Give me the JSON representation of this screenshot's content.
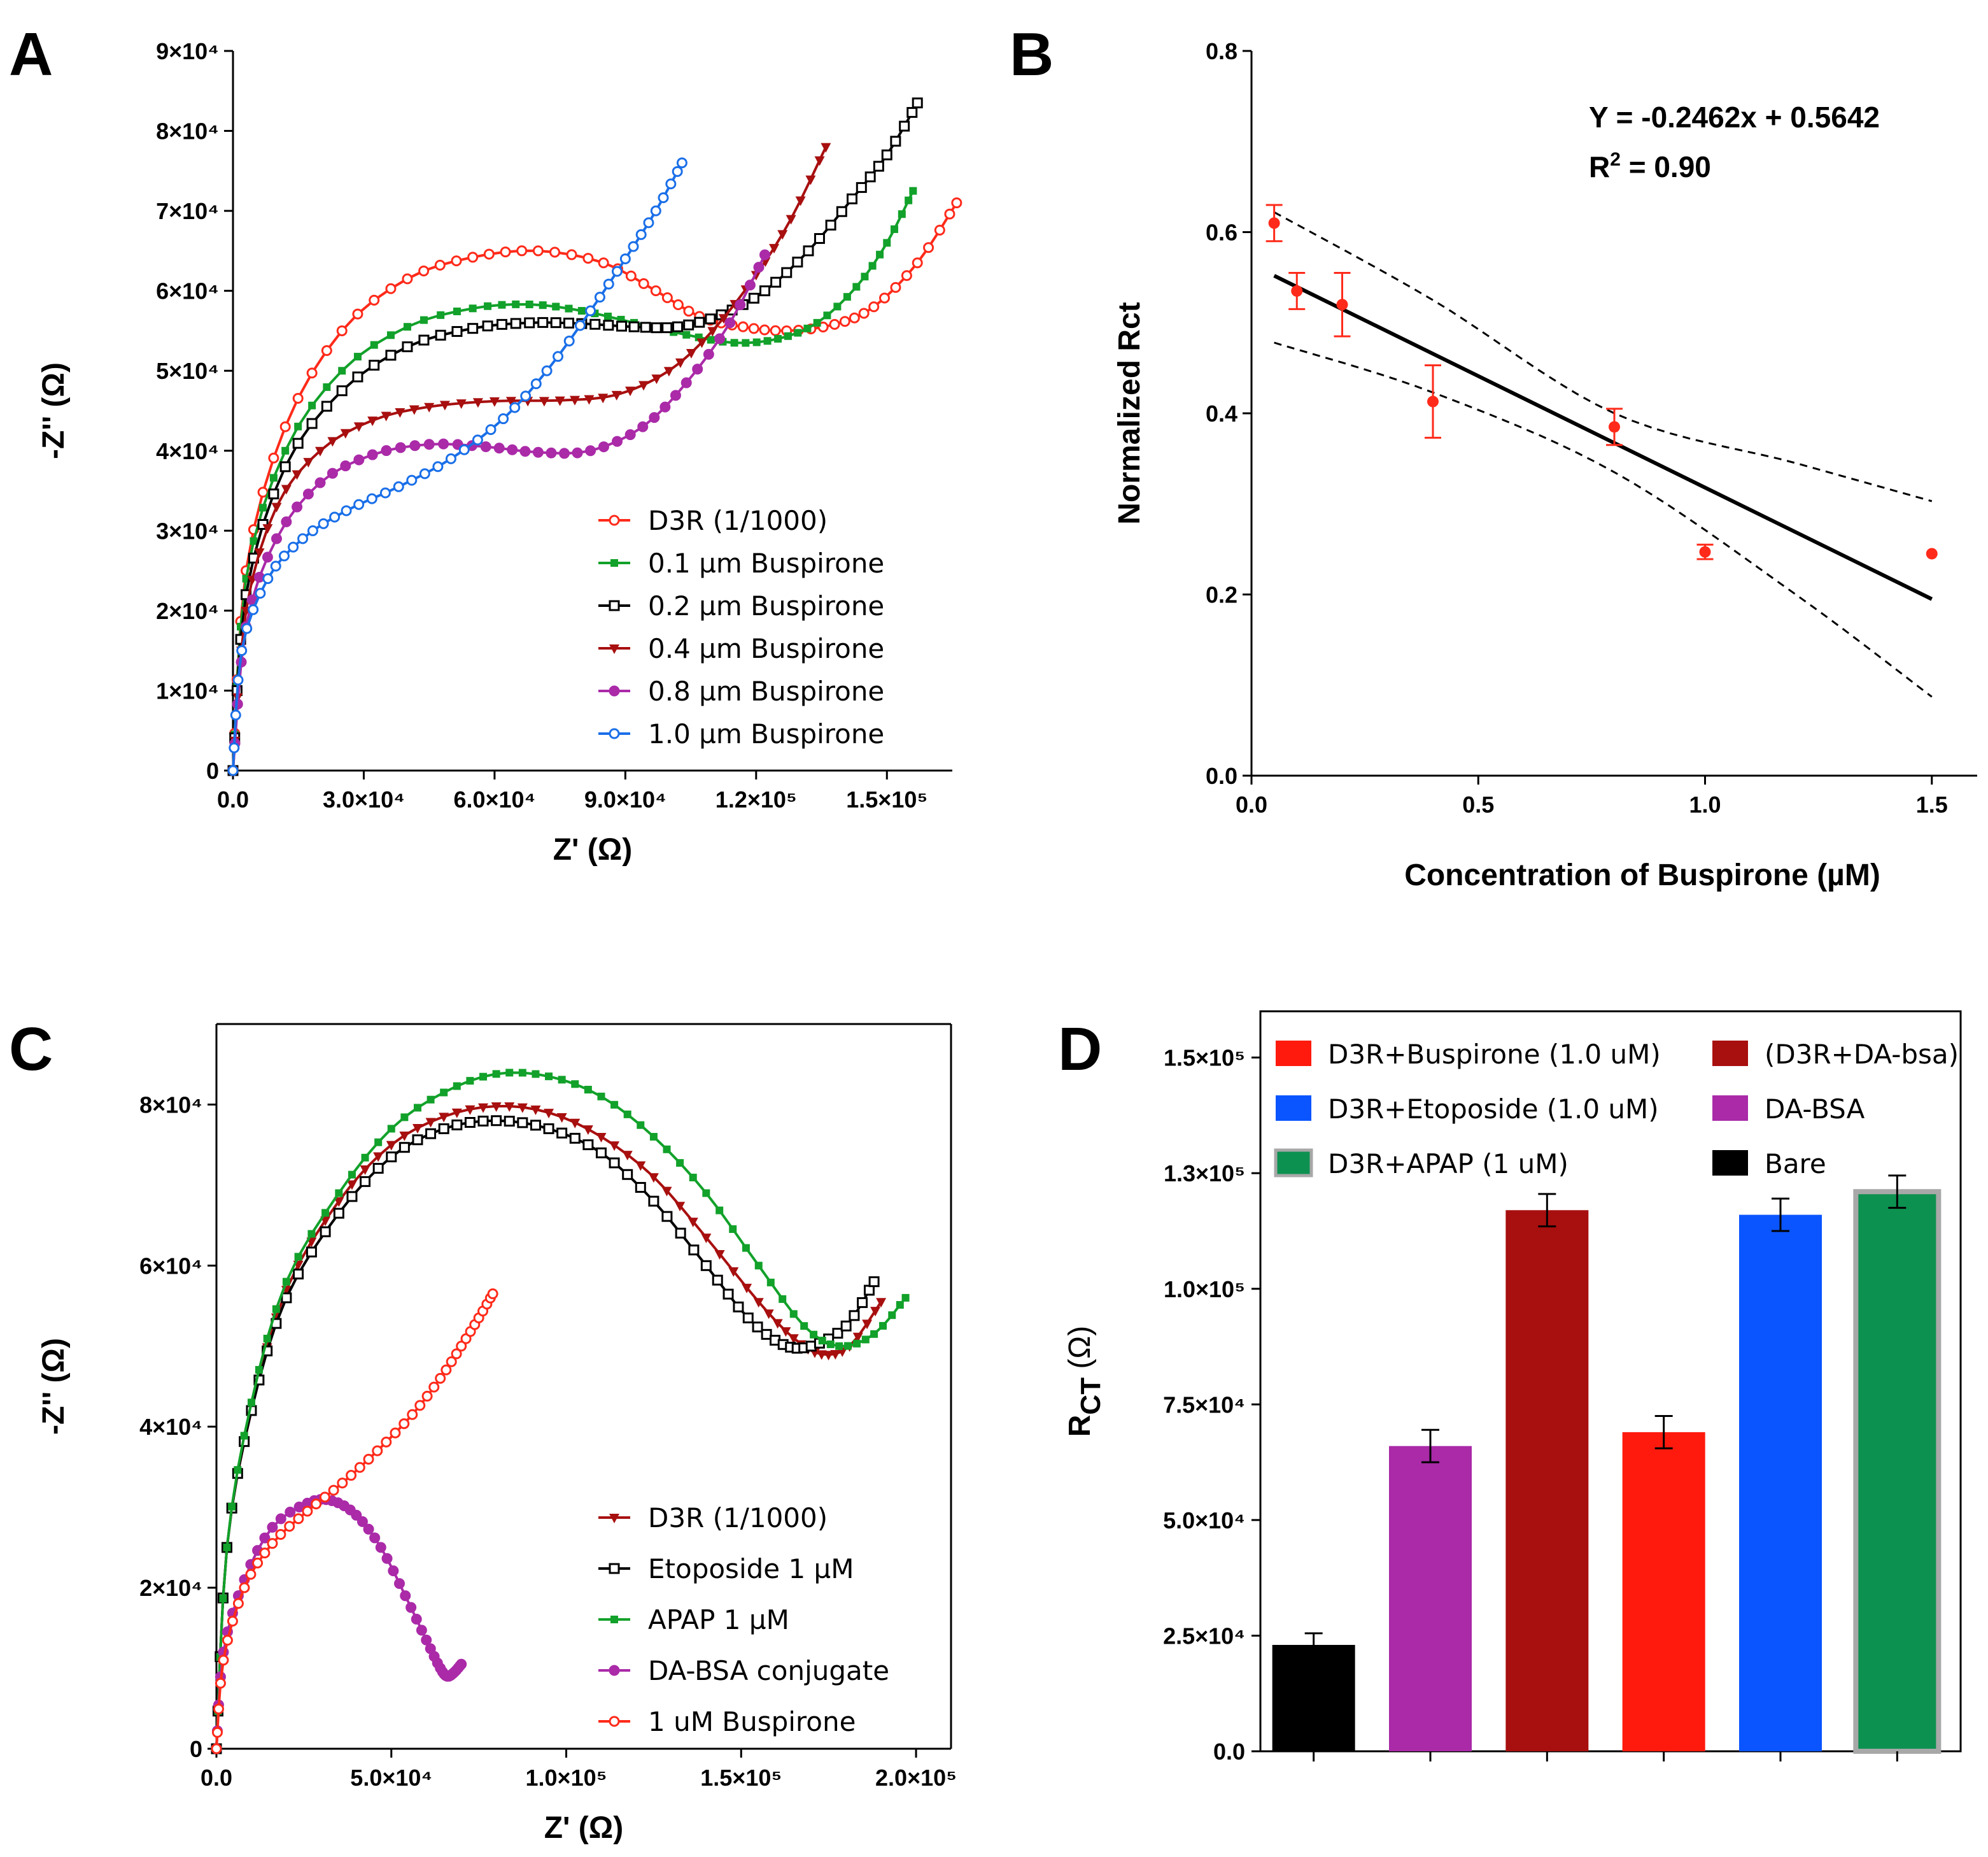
{
  "panels": {
    "A": "A",
    "B": "B",
    "C": "C",
    "D": "D"
  },
  "colors": {
    "red": "#ff2a1a",
    "green": "#12a12a",
    "black": "#000000",
    "darkred": "#a80f0f",
    "purple": "#aa2aa8",
    "blue": "#1a6fe8",
    "bar_red": "#ff1a0d",
    "bar_blue": "#0a55ff",
    "bar_green": "#0d9150",
    "bar_gray": "#a8a8a8"
  },
  "chart_data": [
    {
      "id": "A",
      "type": "line",
      "xlabel": "Z' (Ω)",
      "ylabel": "-Z'' (Ω)",
      "xlim": [
        0,
        165000
      ],
      "ylim": [
        0,
        90000
      ],
      "x_ticks": [
        {
          "value": 0,
          "label": "0.0"
        },
        {
          "value": 30000,
          "label": "3.0×10⁴"
        },
        {
          "value": 60000,
          "label": "6.0×10⁴"
        },
        {
          "value": 90000,
          "label": "9.0×10⁴"
        },
        {
          "value": 120000,
          "label": "1.2×10⁵"
        },
        {
          "value": 150000,
          "label": "1.5×10⁵"
        }
      ],
      "y_ticks": [
        {
          "value": 0,
          "label": "0"
        },
        {
          "value": 10000,
          "label": "1×10⁴"
        },
        {
          "value": 20000,
          "label": "2×10⁴"
        },
        {
          "value": 30000,
          "label": "3×10⁴"
        },
        {
          "value": 40000,
          "label": "4×10⁴"
        },
        {
          "value": 50000,
          "label": "5×10⁴"
        },
        {
          "value": 60000,
          "label": "6×10⁴"
        },
        {
          "value": 70000,
          "label": "7×10⁴"
        },
        {
          "value": 80000,
          "label": "8×10⁴"
        },
        {
          "value": 90000,
          "label": "9×10⁴"
        }
      ],
      "series": [
        {
          "name": "D3R (1/1000)",
          "color": "#ff2a1a",
          "marker": "circle-open",
          "x": [
            0,
            3000,
            12000,
            25000,
            40000,
            55000,
            70000,
            85000,
            97000,
            107000,
            117000,
            127000,
            138000,
            147000,
            157000,
            166000
          ],
          "y": [
            0,
            25000,
            43000,
            55000,
            61500,
            64200,
            65000,
            63500,
            60000,
            56800,
            55500,
            55000,
            55800,
            58000,
            63500,
            71000
          ]
        },
        {
          "name": "0.1 µm Buspirone",
          "color": "#12a12a",
          "marker": "square-filled",
          "x": [
            0,
            3000,
            12000,
            25000,
            40000,
            55000,
            68000,
            80000,
            92000,
            104000,
            115000,
            125000,
            134000,
            143000,
            150000,
            156000
          ],
          "y": [
            0,
            24000,
            40000,
            50000,
            55500,
            57800,
            58300,
            57500,
            56000,
            54500,
            53500,
            54000,
            56000,
            60500,
            66000,
            72500
          ]
        },
        {
          "name": "0.2 µm Buspirone",
          "color": "#000000",
          "marker": "square-open",
          "x": [
            0,
            3000,
            12000,
            25000,
            40000,
            55000,
            68000,
            80000,
            92000,
            102000,
            112000,
            122000,
            132000,
            142000,
            150000,
            157000
          ],
          "y": [
            0,
            22000,
            38000,
            47500,
            53000,
            55300,
            56000,
            55900,
            55500,
            55500,
            57000,
            60000,
            65000,
            71500,
            77000,
            83500
          ]
        },
        {
          "name": "0.4 µm Buspirone",
          "color": "#a80f0f",
          "marker": "triangle-down",
          "x": [
            0,
            3000,
            10000,
            20000,
            32000,
            45000,
            60000,
            75000,
            88000,
            100000,
            110000,
            120000,
            128000,
            136000
          ],
          "y": [
            0,
            20000,
            33000,
            40000,
            43800,
            45500,
            46200,
            46300,
            47000,
            50000,
            55000,
            62000,
            69000,
            78000
          ]
        },
        {
          "name": "0.8 µm Buspirone",
          "color": "#aa2aa8",
          "marker": "circle-filled",
          "x": [
            0,
            3000,
            10000,
            20000,
            32000,
            45000,
            58000,
            70000,
            82000,
            94000,
            104000,
            114000,
            122000
          ],
          "y": [
            0,
            18000,
            29000,
            36000,
            39500,
            40800,
            40500,
            39800,
            40000,
            43000,
            48500,
            56000,
            64500
          ]
        },
        {
          "name": "1.0 µm Buspirone",
          "color": "#1a6fe8",
          "marker": "circle-open",
          "x": [
            0,
            2000,
            8000,
            16000,
            26000,
            38000,
            50000,
            62000,
            72000,
            82000,
            90000,
            97000,
            103000
          ],
          "y": [
            0,
            15000,
            24000,
            29000,
            32500,
            35500,
            39000,
            44000,
            50000,
            57500,
            64000,
            70000,
            76000
          ]
        }
      ]
    },
    {
      "id": "B",
      "type": "scatter",
      "xlabel": "Concentration of Buspirone (µM)",
      "ylabel": "Normalized Rct",
      "xlim": [
        0,
        1.6
      ],
      "ylim": [
        0,
        0.8
      ],
      "x_ticks": [
        {
          "value": 0,
          "label": "0.0"
        },
        {
          "value": 0.5,
          "label": "0.5"
        },
        {
          "value": 1.0,
          "label": "1.0"
        },
        {
          "value": 1.5,
          "label": "1.5"
        }
      ],
      "y_ticks": [
        {
          "value": 0,
          "label": "0.0"
        },
        {
          "value": 0.2,
          "label": "0.2"
        },
        {
          "value": 0.4,
          "label": "0.4"
        },
        {
          "value": 0.6,
          "label": "0.6"
        },
        {
          "value": 0.8,
          "label": "0.8"
        }
      ],
      "points": {
        "x": [
          0.05,
          0.1,
          0.2,
          0.4,
          0.8,
          1.0,
          1.5
        ],
        "y": [
          0.61,
          0.535,
          0.52,
          0.413,
          0.385,
          0.247,
          0.245
        ],
        "err": [
          0.02,
          0.02,
          0.035,
          0.04,
          0.02,
          0.008,
          0.0
        ]
      },
      "fit": {
        "slope": -0.2462,
        "intercept": 0.5642,
        "x_range": [
          0.05,
          1.5
        ]
      },
      "conf_band": {
        "x": [
          0.05,
          0.4,
          0.8,
          1.2,
          1.5
        ],
        "upper": [
          0.622,
          0.525,
          0.4,
          0.345,
          0.303
        ],
        "lower": [
          0.478,
          0.423,
          0.335,
          0.2,
          0.087
        ]
      },
      "equation": "Y = -0.2462x + 0.5642",
      "r2_label": "R",
      "r2_sup": "2",
      "r2_value": " = 0.90"
    },
    {
      "id": "C",
      "type": "line",
      "xlabel": "Z' (Ω)",
      "ylabel": "-Z'' (Ω)",
      "xlim": [
        0,
        210000
      ],
      "ylim": [
        0,
        90000
      ],
      "x_ticks": [
        {
          "value": 0,
          "label": "0.0"
        },
        {
          "value": 50000,
          "label": "5.0×10⁴"
        },
        {
          "value": 100000,
          "label": "1.0×10⁵"
        },
        {
          "value": 150000,
          "label": "1.5×10⁵"
        },
        {
          "value": 200000,
          "label": "2.0×10⁵"
        }
      ],
      "y_ticks": [
        {
          "value": 0,
          "label": "0"
        },
        {
          "value": 20000,
          "label": "2×10⁴"
        },
        {
          "value": 40000,
          "label": "4×10⁴"
        },
        {
          "value": 60000,
          "label": "6×10⁴"
        },
        {
          "value": 80000,
          "label": "8×10⁴"
        }
      ],
      "series": [
        {
          "name": "D3R (1/1000)",
          "color": "#a80f0f",
          "marker": "triangle-down",
          "x": [
            0,
            3000,
            10000,
            20000,
            35000,
            50000,
            65000,
            80000,
            95000,
            110000,
            125000,
            140000,
            155000,
            165000,
            173000,
            181000,
            190000
          ],
          "y": [
            0,
            25000,
            42000,
            57000,
            68000,
            75000,
            78500,
            79800,
            79000,
            76000,
            71000,
            63500,
            55500,
            51000,
            49000,
            50000,
            55500
          ]
        },
        {
          "name": "Etoposide 1 µM",
          "color": "#000000",
          "marker": "square-open",
          "x": [
            0,
            3000,
            10000,
            20000,
            35000,
            50000,
            65000,
            80000,
            95000,
            110000,
            125000,
            140000,
            152000,
            162000,
            170000,
            180000,
            188000
          ],
          "y": [
            0,
            25000,
            42000,
            56000,
            66500,
            73500,
            77000,
            78000,
            77000,
            74000,
            68000,
            60000,
            53500,
            50200,
            50000,
            52500,
            58000
          ]
        },
        {
          "name": "APAP 1 µM",
          "color": "#12a12a",
          "marker": "square-filled",
          "x": [
            0,
            3000,
            10000,
            20000,
            35000,
            50000,
            65000,
            80000,
            95000,
            110000,
            125000,
            140000,
            155000,
            168000,
            178000,
            188000,
            197000
          ],
          "y": [
            0,
            25000,
            43000,
            58000,
            69000,
            77000,
            81500,
            83800,
            83500,
            81000,
            76000,
            69000,
            60000,
            52500,
            50000,
            51500,
            56000
          ]
        },
        {
          "name": "DA-BSA conjugate",
          "color": "#aa2aa8",
          "marker": "circle-filled",
          "x": [
            0,
            2000,
            8000,
            16000,
            26000,
            33000,
            40000,
            47000,
            54000,
            60000,
            64000,
            66000,
            68000,
            70000
          ],
          "y": [
            0,
            12000,
            21000,
            27500,
            30500,
            30800,
            29000,
            25000,
            19000,
            13500,
            10000,
            9000,
            9500,
            10500
          ]
        },
        {
          "name": "1 uM Buspirone",
          "color": "#ff2a1a",
          "marker": "circle-open",
          "x": [
            0,
            2000,
            8000,
            16000,
            26000,
            36000,
            46000,
            56000,
            64000,
            70000,
            75000,
            79000
          ],
          "y": [
            0,
            11000,
            20000,
            25500,
            29500,
            33000,
            37000,
            41500,
            46000,
            50000,
            53500,
            56500
          ]
        }
      ]
    },
    {
      "id": "D",
      "type": "bar",
      "ylabel": "R",
      "ylabel_sub": "CT",
      "ylabel_unit": " (Ω)",
      "ylim": [
        0,
        160000
      ],
      "y_ticks": [
        {
          "value": 0,
          "label": "0.0"
        },
        {
          "value": 25000,
          "label": "2.5×10⁴"
        },
        {
          "value": 50000,
          "label": "5.0×10⁴"
        },
        {
          "value": 75000,
          "label": "7.5×10⁴"
        },
        {
          "value": 100000,
          "label": "1.0×10⁵"
        },
        {
          "value": 125000,
          "label": "1.3×10⁵"
        },
        {
          "value": 150000,
          "label": "1.5×10⁵"
        }
      ],
      "categories": [
        "Bare",
        "DA-BSA",
        "(D3R+DA-bsa)",
        "D3R+Buspirone (1.0 uM)",
        "D3R+Etoposide (1.0 uM)",
        "D3R+APAP (1 uM)"
      ],
      "values": [
        23000,
        66000,
        117000,
        69000,
        116000,
        121000
      ],
      "errors": [
        2500,
        3500,
        3500,
        3500,
        3500,
        3500
      ],
      "bar_colors": [
        "#000000",
        "#aa2aa8",
        "#a80f0f",
        "#ff1a0d",
        "#0a55ff",
        "#0d9150"
      ],
      "legend_left": [
        "D3R+Buspirone (1.0 uM)",
        "D3R+Etoposide (1.0 uM)",
        "D3R+APAP (1 uM)"
      ],
      "legend_right": [
        "(D3R+DA-bsa)",
        "DA-BSA",
        "Bare"
      ]
    }
  ]
}
